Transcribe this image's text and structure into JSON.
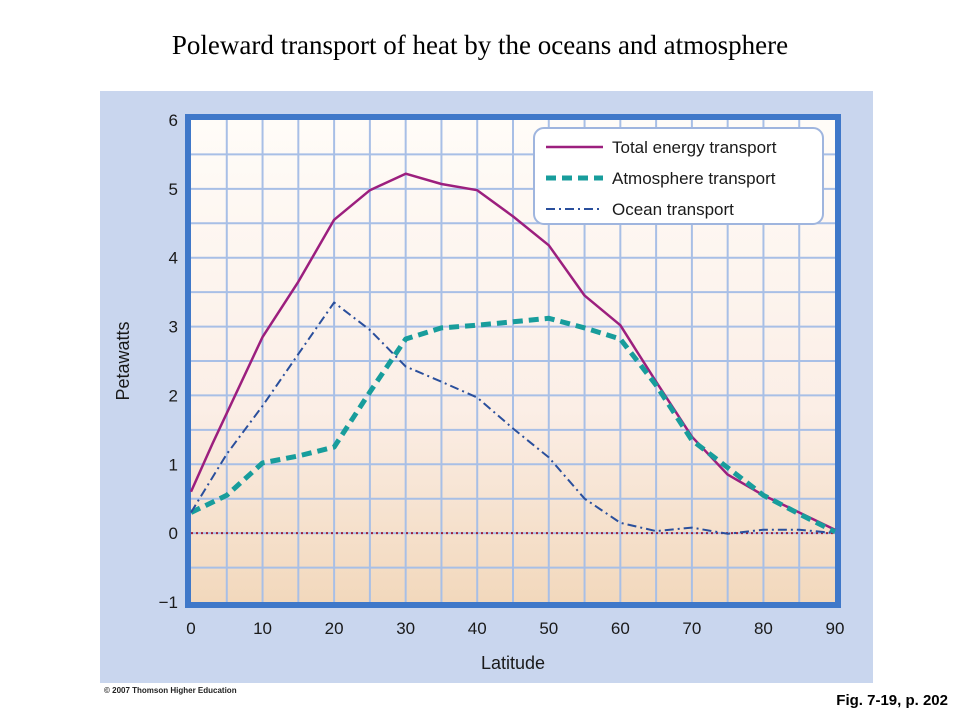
{
  "slide": {
    "title": "Poleward transport of heat by the oceans and atmosphere",
    "copyright": "© 2007 Thomson Higher Education",
    "caption": "Fig. 7-19, p. 202"
  },
  "chart_data": {
    "type": "line",
    "title": "Poleward transport of heat by the oceans and atmosphere",
    "xlabel": "Latitude",
    "ylabel": "Petawatts",
    "xlim": [
      0,
      90
    ],
    "ylim": [
      -1,
      6
    ],
    "x_ticks": [
      0,
      10,
      20,
      30,
      40,
      50,
      60,
      70,
      80,
      90
    ],
    "y_ticks": [
      -1,
      0,
      1,
      2,
      3,
      4,
      5,
      6
    ],
    "x_tick_labels": [
      "0",
      "10",
      "20",
      "30",
      "40",
      "50",
      "60",
      "70",
      "80",
      "90"
    ],
    "y_tick_labels": [
      "−1",
      "0",
      "1",
      "2",
      "3",
      "4",
      "5",
      "6"
    ],
    "grid": true,
    "legend_position": "top-right",
    "series": [
      {
        "name": "Total energy transport",
        "style": "solid",
        "color": "#9c1f7e",
        "x": [
          0,
          3,
          10,
          15,
          20,
          25,
          30,
          35,
          40,
          45,
          50,
          55,
          60,
          65,
          70,
          75,
          80,
          85,
          90
        ],
        "y": [
          0.6,
          1.3,
          2.85,
          3.65,
          4.55,
          4.98,
          5.22,
          5.07,
          4.98,
          4.6,
          4.18,
          3.45,
          3.02,
          2.2,
          1.4,
          0.85,
          0.55,
          0.3,
          0.05
        ]
      },
      {
        "name": "Atmosphere transport",
        "style": "dashed",
        "color": "#189d9c",
        "x": [
          0,
          5,
          10,
          15,
          20,
          25,
          30,
          35,
          40,
          45,
          50,
          55,
          60,
          65,
          70,
          75,
          80,
          85,
          90
        ],
        "y": [
          0.3,
          0.55,
          1.02,
          1.12,
          1.25,
          2.05,
          2.82,
          2.98,
          3.02,
          3.07,
          3.12,
          2.98,
          2.82,
          2.15,
          1.35,
          0.95,
          0.55,
          0.28,
          0.02
        ]
      },
      {
        "name": "Ocean transport",
        "style": "dash-dot",
        "color": "#2a4f9c",
        "x": [
          0,
          5,
          10,
          15,
          20,
          25,
          30,
          35,
          40,
          45,
          50,
          55,
          60,
          65,
          70,
          75,
          80,
          85,
          90
        ],
        "y": [
          0.3,
          1.15,
          1.85,
          2.6,
          3.35,
          2.95,
          2.42,
          2.2,
          1.97,
          1.52,
          1.1,
          0.5,
          0.15,
          0.03,
          0.08,
          -0.01,
          0.05,
          0.05,
          0.0
        ]
      }
    ],
    "reference_line": {
      "y": 0,
      "style": "dotted",
      "color": "#a0203c"
    }
  }
}
